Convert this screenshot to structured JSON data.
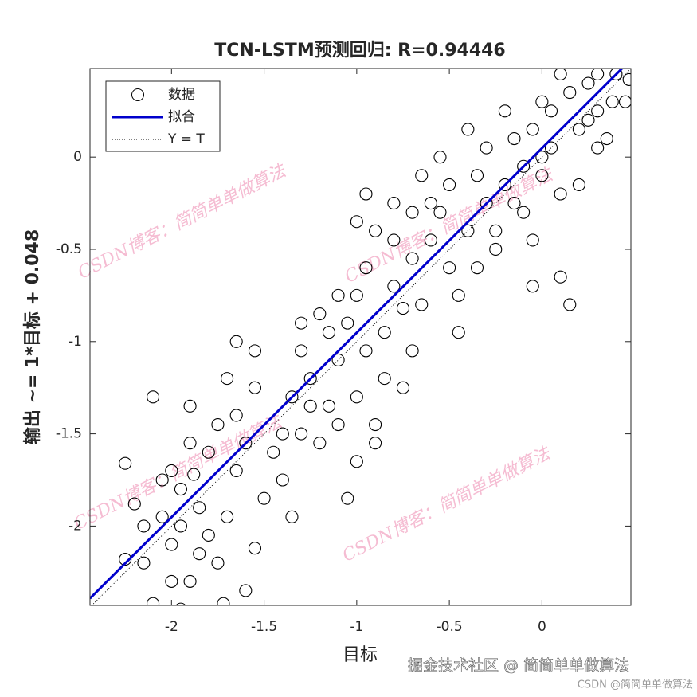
{
  "chart_data": {
    "type": "scatter",
    "title": "TCN-LSTM预测回归: R=0.94446",
    "xlabel": "目标",
    "ylabel": "输出 ~= 1*目标 + 0.048",
    "xlim": [
      -2.44,
      0.48
    ],
    "ylim": [
      -2.43,
      0.48
    ],
    "xticks": [
      -2,
      -1.5,
      -1,
      -0.5,
      0
    ],
    "yticks": [
      -2,
      -1.5,
      -1,
      -0.5,
      0
    ],
    "grid": false,
    "legend": "upper left",
    "series": [
      {
        "name": "数据",
        "color": "#000000",
        "kind": "marker",
        "x": [
          -2.25,
          -2.2,
          -2.15,
          -2.25,
          -2.1,
          -2.05,
          -2.0,
          -1.95,
          -1.9,
          -2.1,
          -1.9,
          -2.0,
          -1.95,
          -1.85,
          -1.8,
          -1.75,
          -1.7,
          -1.65,
          -1.6,
          -1.8,
          -1.9,
          -2.05,
          -1.85,
          -1.72,
          -1.6,
          -1.75,
          -1.65,
          -1.7,
          -1.55,
          -1.55,
          -1.5,
          -1.45,
          -1.4,
          -1.35,
          -1.55,
          -1.65,
          -2.15,
          -2.0,
          -1.95,
          -1.88,
          -1.4,
          -1.35,
          -1.3,
          -1.25,
          -1.2,
          -1.3,
          -1.15,
          -1.1,
          -1.05,
          -1.0,
          -1.0,
          -0.95,
          -0.9,
          -0.85,
          -0.8,
          -0.75,
          -0.7,
          -0.8,
          -0.9,
          -1.0,
          -0.95,
          -1.1,
          -1.15,
          -1.2,
          -1.05,
          -0.9,
          -1.1,
          -0.85,
          -0.7,
          -0.75,
          -1.3,
          -1.25,
          -0.95,
          -1.0,
          -0.8,
          -0.65,
          -0.6,
          -0.55,
          -0.5,
          -0.5,
          -0.45,
          -0.4,
          -0.35,
          -0.3,
          -0.3,
          -0.25,
          -0.2,
          -0.15,
          -0.1,
          -0.1,
          -0.05,
          0.0,
          0.0,
          0.05,
          0.1,
          0.1,
          0.15,
          0.15,
          0.2,
          0.25,
          0.3,
          0.35,
          0.4,
          0.45,
          0.47,
          0.3,
          0.2,
          -0.2,
          -0.4,
          -0.55,
          -0.6,
          -0.45,
          -0.35,
          -0.25,
          -0.15,
          -0.05,
          0.05,
          0.1,
          0.25,
          0.3,
          -0.7,
          -0.65,
          0.38,
          -0.05,
          0.0
        ],
        "values": [
          -1.66,
          -1.88,
          -2.0,
          -2.18,
          -2.42,
          -1.95,
          -2.1,
          -2.45,
          -2.3,
          -1.3,
          -1.35,
          -1.7,
          -1.8,
          -1.9,
          -2.05,
          -2.2,
          -1.95,
          -1.7,
          -1.55,
          -1.6,
          -1.55,
          -1.75,
          -2.15,
          -2.42,
          -2.35,
          -1.45,
          -1.4,
          -1.2,
          -1.25,
          -2.12,
          -1.85,
          -1.6,
          -1.5,
          -1.3,
          -1.05,
          -1.0,
          -2.2,
          -2.3,
          -2.0,
          -1.72,
          -1.75,
          -1.95,
          -1.5,
          -1.2,
          -0.85,
          -0.9,
          -1.35,
          -1.1,
          -0.9,
          -1.3,
          -0.75,
          -1.05,
          -1.45,
          -0.95,
          -0.7,
          -1.25,
          -0.55,
          -0.45,
          -0.4,
          -0.35,
          -0.6,
          -0.75,
          -0.95,
          -1.55,
          -1.85,
          -1.55,
          -1.45,
          -1.2,
          -1.05,
          -0.82,
          -1.05,
          -1.35,
          -0.2,
          -1.65,
          -0.25,
          -0.8,
          -0.45,
          -0.3,
          -0.6,
          -0.15,
          -0.95,
          -0.4,
          -0.1,
          -0.25,
          0.05,
          -0.5,
          -0.15,
          0.1,
          -0.3,
          -0.05,
          0.15,
          -0.1,
          0.3,
          0.05,
          -0.2,
          -0.65,
          -0.8,
          0.35,
          0.15,
          0.4,
          0.25,
          0.1,
          0.45,
          0.3,
          0.42,
          0.05,
          -0.15,
          0.25,
          0.15,
          0.0,
          -0.25,
          -0.75,
          -0.6,
          -0.4,
          -0.25,
          -0.45,
          0.25,
          0.45,
          0.2,
          0.45,
          -0.3,
          -0.1,
          0.3,
          -0.7,
          0.0
        ]
      },
      {
        "name": "拟合",
        "color": "#0000cc",
        "kind": "line",
        "x": [
          -2.44,
          0.48
        ],
        "values": [
          -2.392,
          0.528
        ]
      },
      {
        "name": "Y = T",
        "color": "#000000",
        "kind": "dotted",
        "x": [
          -2.44,
          0.48
        ],
        "values": [
          -2.44,
          0.48
        ]
      }
    ]
  },
  "watermarks": [
    "CSDN博客：简简单单做算法",
    "CSDN博客：简简单单做算法",
    "CSDN博客：简简单单做算法",
    "CSDN博客：简简单单做算法"
  ],
  "footer": {
    "main": "掘金技术社区 @ 简简单单做算法",
    "sub": "CSDN @简简单单做算法"
  }
}
